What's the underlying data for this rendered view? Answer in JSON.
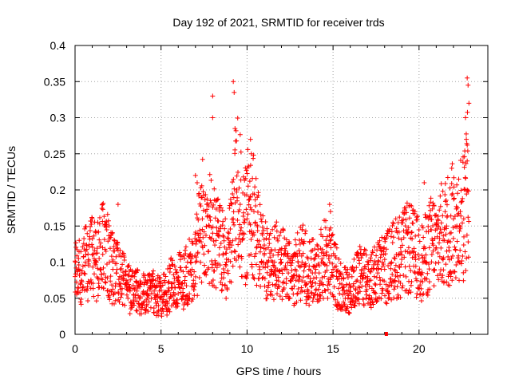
{
  "chart_data": {
    "type": "scatter",
    "title": "Day 192 of 2021, SRMTID for receiver trds",
    "xlabel": "GPS time / hours",
    "ylabel": "SRMTID / TECUs",
    "xlim": [
      0,
      24
    ],
    "ylim": [
      0,
      0.4
    ],
    "xticks": [
      0,
      5,
      10,
      15,
      20
    ],
    "xtick_labels": [
      "0",
      "5",
      "10",
      "15",
      "20"
    ],
    "yticks": [
      0,
      0.05,
      0.1,
      0.15,
      0.2,
      0.25,
      0.3,
      0.35,
      0.4
    ],
    "ytick_labels": [
      "0",
      "0.05",
      "0.1",
      "0.15",
      "0.2",
      "0.25",
      "0.3",
      "0.35",
      "0.4"
    ],
    "grid": true,
    "marker": "+",
    "color": "#ff0000",
    "series": [
      {
        "name": "SRMTID",
        "x": [
          0.0,
          0.2,
          0.4,
          0.6,
          0.8,
          1.0,
          1.2,
          1.4,
          1.6,
          1.8,
          2.0,
          2.2,
          2.4,
          2.6,
          2.8,
          3.0,
          3.2,
          3.4,
          3.6,
          3.8,
          4.0,
          4.2,
          4.4,
          4.6,
          4.8,
          5.0,
          5.2,
          5.4,
          5.6,
          5.8,
          6.0,
          6.2,
          6.4,
          6.6,
          6.8,
          7.0,
          7.2,
          7.4,
          7.6,
          7.8,
          8.0,
          8.2,
          8.4,
          8.6,
          8.8,
          9.0,
          9.2,
          9.4,
          9.6,
          9.8,
          10.0,
          10.2,
          10.4,
          10.6,
          10.8,
          11.0,
          11.2,
          11.4,
          11.6,
          11.8,
          12.0,
          12.2,
          12.4,
          12.6,
          12.8,
          13.0,
          13.2,
          13.4,
          13.6,
          13.8,
          14.0,
          14.2,
          14.4,
          14.6,
          14.8,
          15.0,
          15.2,
          15.4,
          15.6,
          15.8,
          16.0,
          16.2,
          16.4,
          16.6,
          16.8,
          17.0,
          17.2,
          17.4,
          17.6,
          17.8,
          18.0,
          18.2,
          18.4,
          18.6,
          18.8,
          19.0,
          19.2,
          19.4,
          19.6,
          19.8,
          20.0,
          20.2,
          20.4,
          20.6,
          20.8,
          21.0,
          21.2,
          21.4,
          21.6,
          21.8,
          22.0,
          22.2,
          22.4,
          22.6,
          22.8
        ],
        "y": [
          0.08,
          0.09,
          0.085,
          0.1,
          0.095,
          0.11,
          0.1,
          0.105,
          0.12,
          0.115,
          0.1,
          0.09,
          0.085,
          0.08,
          0.075,
          0.065,
          0.06,
          0.055,
          0.06,
          0.05,
          0.055,
          0.06,
          0.065,
          0.06,
          0.055,
          0.05,
          0.055,
          0.06,
          0.07,
          0.065,
          0.075,
          0.07,
          0.08,
          0.085,
          0.09,
          0.1,
          0.13,
          0.16,
          0.17,
          0.15,
          0.14,
          0.13,
          0.12,
          0.11,
          0.1,
          0.12,
          0.16,
          0.2,
          0.18,
          0.14,
          0.16,
          0.19,
          0.17,
          0.13,
          0.12,
          0.11,
          0.1,
          0.09,
          0.1,
          0.11,
          0.1,
          0.09,
          0.085,
          0.08,
          0.09,
          0.095,
          0.1,
          0.095,
          0.09,
          0.085,
          0.09,
          0.095,
          0.1,
          0.11,
          0.1,
          0.09,
          0.08,
          0.07,
          0.065,
          0.06,
          0.065,
          0.07,
          0.075,
          0.08,
          0.085,
          0.08,
          0.075,
          0.08,
          0.085,
          0.09,
          0.09,
          0.095,
          0.1,
          0.105,
          0.11,
          0.11,
          0.115,
          0.12,
          0.115,
          0.11,
          0.105,
          0.1,
          0.11,
          0.12,
          0.13,
          0.12,
          0.14,
          0.13,
          0.15,
          0.14,
          0.16,
          0.15,
          0.17,
          0.16,
          0.2
        ]
      }
    ],
    "extra_marks": [
      {
        "x": 8.0,
        "y": 0.33
      },
      {
        "x": 8.0,
        "y": 0.3
      },
      {
        "x": 9.2,
        "y": 0.35
      },
      {
        "x": 9.25,
        "y": 0.335
      },
      {
        "x": 9.3,
        "y": 0.285
      },
      {
        "x": 10.2,
        "y": 0.27
      },
      {
        "x": 10.25,
        "y": 0.25
      },
      {
        "x": 22.8,
        "y": 0.355
      },
      {
        "x": 22.85,
        "y": 0.345
      },
      {
        "x": 22.9,
        "y": 0.32
      },
      {
        "x": 22.7,
        "y": 0.3
      },
      {
        "x": 22.75,
        "y": 0.27
      },
      {
        "x": 22.8,
        "y": 0.24
      },
      {
        "x": 7.0,
        "y": 0.22
      },
      {
        "x": 7.1,
        "y": 0.21
      },
      {
        "x": 14.8,
        "y": 0.18
      },
      {
        "x": 14.85,
        "y": 0.17
      },
      {
        "x": 21.9,
        "y": 0.23
      },
      {
        "x": 20.3,
        "y": 0.21
      },
      {
        "x": 1.6,
        "y": 0.18
      },
      {
        "x": 2.5,
        "y": 0.18
      },
      {
        "x": 18.1,
        "y": 0.0
      }
    ]
  }
}
